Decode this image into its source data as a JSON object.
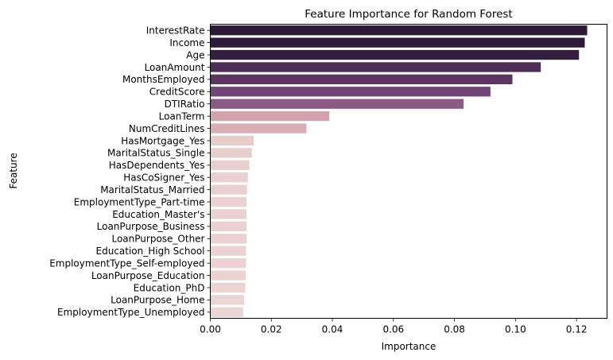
{
  "chart_data": {
    "type": "bar",
    "orientation": "horizontal",
    "title": "Feature Importance for Random Forest",
    "xlabel": "Importance",
    "ylabel": "Feature",
    "xlim": [
      0,
      0.13
    ],
    "xticks": [
      0.0,
      0.02,
      0.04,
      0.06,
      0.08,
      0.1,
      0.12
    ],
    "xtick_labels": [
      "0.00",
      "0.02",
      "0.04",
      "0.06",
      "0.08",
      "0.10",
      "0.12"
    ],
    "grid": false,
    "legend": false,
    "categories": [
      "InterestRate",
      "Income",
      "Age",
      "LoanAmount",
      "MonthsEmployed",
      "CreditScore",
      "DTIRatio",
      "LoanTerm",
      "NumCreditLines",
      "HasMortgage_Yes",
      "MaritalStatus_Single",
      "HasDependents_Yes",
      "HasCoSigner_Yes",
      "MaritalStatus_Married",
      "EmploymentType_Part-time",
      "Education_Master's",
      "LoanPurpose_Business",
      "LoanPurpose_Other",
      "Education_High School",
      "EmploymentType_Self-employed",
      "LoanPurpose_Education",
      "Education_PhD",
      "LoanPurpose_Home",
      "EmploymentType_Unemployed"
    ],
    "values": [
      0.1235,
      0.1227,
      0.1208,
      0.1083,
      0.099,
      0.0918,
      0.083,
      0.039,
      0.0315,
      0.0142,
      0.0136,
      0.0128,
      0.0123,
      0.012,
      0.0119,
      0.0119,
      0.0119,
      0.0119,
      0.0117,
      0.0117,
      0.0116,
      0.0115,
      0.0111,
      0.0108
    ],
    "colors": [
      "#2b1b34",
      "#2d1c37",
      "#321f3d",
      "#4d2c56",
      "#5b3462",
      "#6e4576",
      "#8a5a85",
      "#d2a2ae",
      "#daadb5",
      "#e8cbcb",
      "#e9cece",
      "#e9cfcf",
      "#ead0d0",
      "#ead1d1",
      "#ead2d2",
      "#ead2d2",
      "#ead2d2",
      "#ead2d2",
      "#ebd3d3",
      "#ebd3d3",
      "#ebd3d3",
      "#ebd4d4",
      "#ebd4d4",
      "#ecd5d5"
    ]
  }
}
